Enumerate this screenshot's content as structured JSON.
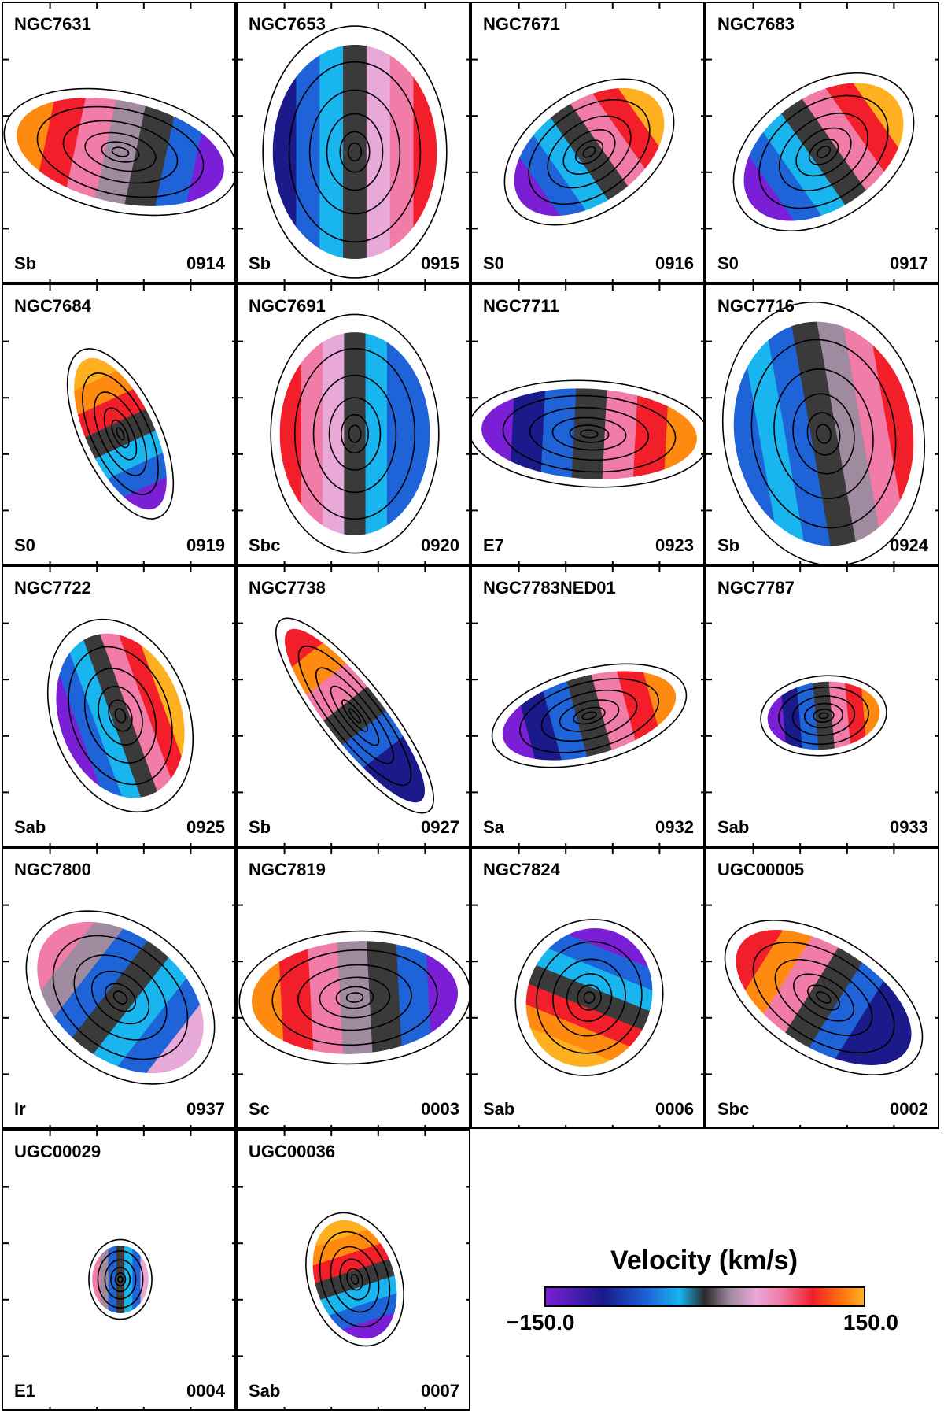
{
  "panels": [
    {
      "name": "NGC7631",
      "type": "Sb",
      "id": "0914",
      "shape": "ellipse",
      "rx": 0.45,
      "ry": 0.18,
      "angle": 12,
      "scheme": "warm-left"
    },
    {
      "name": "NGC7653",
      "type": "Sb",
      "id": "0915",
      "shape": "round",
      "rx": 0.35,
      "ry": 0.38,
      "angle": 0,
      "scheme": "blue-top"
    },
    {
      "name": "NGC7671",
      "type": "S0",
      "id": "0916",
      "shape": "ellipse",
      "rx": 0.36,
      "ry": 0.18,
      "angle": -35,
      "scheme": "warm-topright"
    },
    {
      "name": "NGC7683",
      "type": "S0",
      "id": "0917",
      "shape": "ellipse",
      "rx": 0.38,
      "ry": 0.2,
      "angle": -35,
      "scheme": "warm-topright"
    },
    {
      "name": "NGC7684",
      "type": "S0",
      "id": "0919",
      "shape": "ellipse",
      "rx": 0.35,
      "ry": 0.12,
      "angle": 65,
      "scheme": "warm-top"
    },
    {
      "name": "NGC7691",
      "type": "Sbc",
      "id": "0920",
      "shape": "round",
      "rx": 0.32,
      "ry": 0.36,
      "angle": 0,
      "scheme": "warm-top-blue-bottom"
    },
    {
      "name": "NGC7711",
      "type": "E7",
      "id": "0923",
      "shape": "ellipse",
      "rx": 0.46,
      "ry": 0.16,
      "angle": 3,
      "scheme": "warm-right"
    },
    {
      "name": "NGC7716",
      "type": "Sb",
      "id": "0924",
      "shape": "round",
      "rx": 0.38,
      "ry": 0.4,
      "angle": -10,
      "scheme": "blue-left"
    },
    {
      "name": "NGC7722",
      "type": "Sab",
      "id": "0925",
      "shape": "round",
      "rx": 0.26,
      "ry": 0.3,
      "angle": -20,
      "scheme": "warm-topright"
    },
    {
      "name": "NGC7738",
      "type": "Sb",
      "id": "0927",
      "shape": "ellipse",
      "rx": 0.46,
      "ry": 0.1,
      "angle": 52,
      "scheme": "warm-topleft"
    },
    {
      "name": "NGC7783NED01",
      "type": "Sa",
      "id": "0932",
      "shape": "ellipse",
      "rx": 0.38,
      "ry": 0.14,
      "angle": -15,
      "scheme": "warm-right"
    },
    {
      "name": "NGC7787",
      "type": "Sab",
      "id": "0933",
      "shape": "ellipse",
      "rx": 0.24,
      "ry": 0.12,
      "angle": -5,
      "scheme": "warm-right"
    },
    {
      "name": "NGC7800",
      "type": "Ir",
      "id": "0937",
      "shape": "ellipse",
      "rx": 0.4,
      "ry": 0.22,
      "angle": 38,
      "scheme": "mixed"
    },
    {
      "name": "NGC7819",
      "type": "Sc",
      "id": "0003",
      "shape": "ellipse",
      "rx": 0.44,
      "ry": 0.2,
      "angle": -3,
      "scheme": "warm-left"
    },
    {
      "name": "NGC7824",
      "type": "Sab",
      "id": "0006",
      "shape": "ellipse",
      "rx": 0.3,
      "ry": 0.22,
      "angle": -68,
      "scheme": "warm-top"
    },
    {
      "name": "UGC00005",
      "type": "Sbc",
      "id": "0002",
      "shape": "ellipse",
      "rx": 0.42,
      "ry": 0.18,
      "angle": 32,
      "scheme": "warm-topleft"
    },
    {
      "name": "UGC00029",
      "type": "E1",
      "id": "0004",
      "shape": "round",
      "rx": 0.12,
      "ry": 0.12,
      "angle": 0,
      "scheme": "mixed"
    },
    {
      "name": "UGC00036",
      "type": "Sab",
      "id": "0007",
      "shape": "ellipse",
      "rx": 0.26,
      "ry": 0.14,
      "angle": 72,
      "scheme": "warm-top"
    }
  ],
  "colorbar": {
    "title": "Velocity (km/s)",
    "min_label": "−150.0",
    "max_label": "150.0"
  },
  "colors": {
    "violet": "#7a1fd6",
    "navy": "#1a1a8a",
    "blue": "#1e64d8",
    "cyan": "#19b5ee",
    "dark": "#3a3a3a",
    "grey": "#a08aa0",
    "lilac": "#e8a8d8",
    "pink": "#f27ca8",
    "red": "#f21e2a",
    "orange": "#ff8a10",
    "gold": "#ffb020"
  }
}
